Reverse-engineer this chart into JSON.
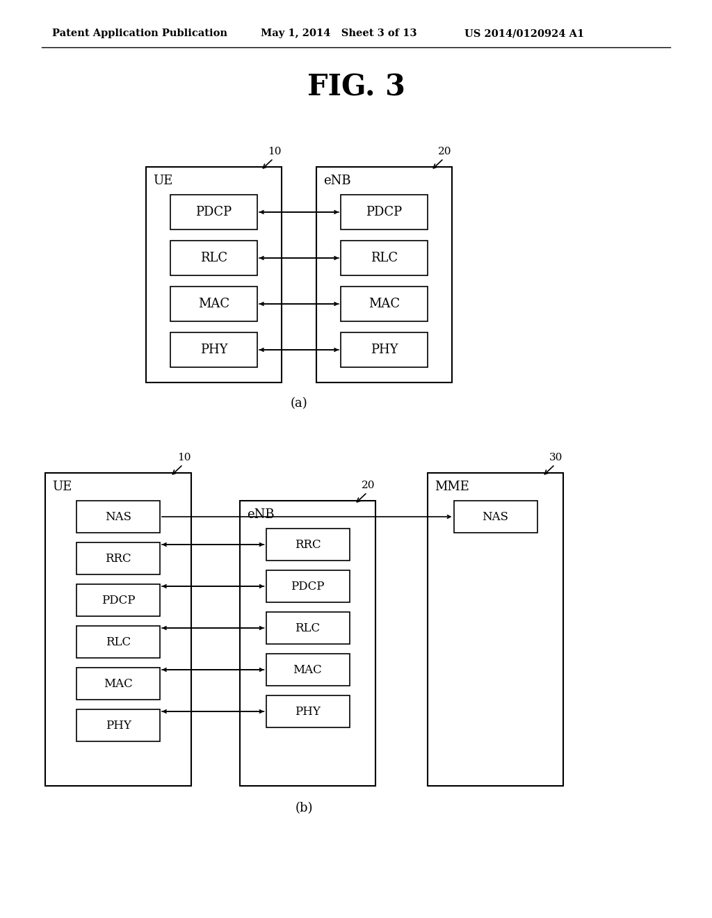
{
  "title": "FIG. 3",
  "header_left": "Patent Application Publication",
  "header_mid": "May 1, 2014   Sheet 3 of 13",
  "header_right": "US 2014/0120924 A1",
  "bg_color": "#ffffff",
  "diagram_a": {
    "label": "(a)",
    "ue_label": "UE",
    "ue_num": "10",
    "enb_label": "eNB",
    "enb_num": "20",
    "ue_layers": [
      "PDCP",
      "RLC",
      "MAC",
      "PHY"
    ],
    "enb_layers": [
      "PDCP",
      "RLC",
      "MAC",
      "PHY"
    ]
  },
  "diagram_b": {
    "label": "(b)",
    "ue_label": "UE",
    "ue_num": "10",
    "enb_label": "eNB",
    "enb_num": "20",
    "mme_label": "MME",
    "mme_num": "30",
    "ue_layers": [
      "NAS",
      "RRC",
      "PDCP",
      "RLC",
      "MAC",
      "PHY"
    ],
    "enb_layers": [
      "RRC",
      "PDCP",
      "RLC",
      "MAC",
      "PHY"
    ],
    "mme_layers": [
      "NAS"
    ]
  }
}
